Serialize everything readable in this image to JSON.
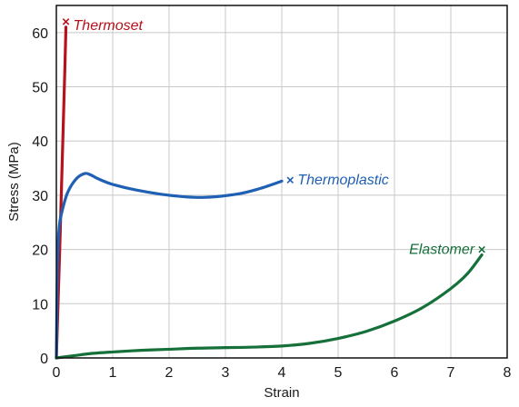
{
  "chart_data": {
    "type": "line",
    "title": "",
    "xlabel": "Strain",
    "ylabel": "Stress (MPa)",
    "xlim": [
      0,
      8
    ],
    "ylim": [
      0,
      65
    ],
    "xticks": [
      "0",
      "1",
      "2",
      "3",
      "4",
      "5",
      "6",
      "7",
      "8"
    ],
    "yticks": [
      "0",
      "10",
      "20",
      "30",
      "40",
      "50",
      "60"
    ],
    "xtick_values": [
      0,
      1,
      2,
      3,
      4,
      5,
      6,
      7,
      8
    ],
    "ytick_values": [
      0,
      10,
      20,
      30,
      40,
      50,
      60
    ],
    "grid": true,
    "legend": "none",
    "series": [
      {
        "name": "Thermoset",
        "color": "#b5121b",
        "end_marker": "x",
        "x": [
          0,
          0.03,
          0.06,
          0.09,
          0.12,
          0.15,
          0.17
        ],
        "y": [
          0,
          10,
          20,
          31,
          42,
          53,
          61
        ]
      },
      {
        "name": "Thermoplastic",
        "color": "#1f5fb4",
        "end_marker": "x",
        "x": [
          0,
          0.02,
          0.05,
          0.1,
          0.2,
          0.35,
          0.5,
          0.6,
          0.75,
          1.0,
          1.4,
          2.0,
          2.6,
          3.2,
          3.6,
          4.0
        ],
        "y": [
          0,
          17,
          24,
          27,
          30.5,
          33,
          34,
          33.8,
          33,
          32,
          31,
          30,
          29.6,
          30.2,
          31.2,
          32.6
        ]
      },
      {
        "name": "Elastomer",
        "color": "#15703a",
        "end_marker": "x",
        "x": [
          0,
          0.3,
          0.6,
          1.0,
          1.5,
          2.0,
          2.5,
          3.0,
          3.5,
          4.0,
          4.5,
          5.0,
          5.5,
          6.0,
          6.5,
          7.0,
          7.3,
          7.55
        ],
        "y": [
          0,
          0.4,
          0.8,
          1.1,
          1.4,
          1.6,
          1.8,
          1.9,
          2.0,
          2.2,
          2.7,
          3.6,
          4.9,
          6.8,
          9.3,
          12.8,
          15.6,
          19
        ]
      }
    ],
    "annotations": [
      {
        "text": "Thermoset",
        "color": "#b5121b",
        "x": 0.17,
        "y": 61,
        "anchor": "start",
        "dx": 1,
        "dy": 4,
        "marker_x": 0.17,
        "marker_y": 62
      },
      {
        "text": "Thermoplastic",
        "color": "#1f5fb4",
        "x": 4.15,
        "y": 32.8,
        "anchor": "start",
        "dx": 1,
        "dy": 0,
        "marker_x": 4.15,
        "marker_y": 32.8
      },
      {
        "text": "Elastomer",
        "color": "#15703a",
        "x": 7.55,
        "y": 20,
        "anchor": "end",
        "dx": -1,
        "dy": 0,
        "marker_x": 7.55,
        "marker_y": 20
      }
    ]
  }
}
